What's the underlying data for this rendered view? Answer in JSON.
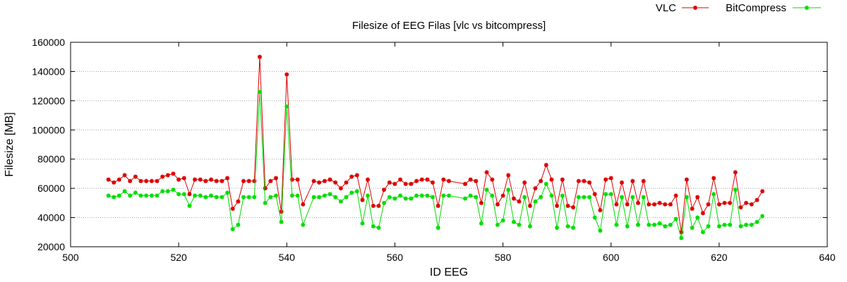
{
  "chart_data": {
    "type": "line",
    "title": "Filesize of EEG Filas [vlc vs bitcompress]",
    "xlabel": "ID EEG",
    "ylabel": "Filesize [MB]",
    "xlim": [
      500,
      640
    ],
    "ylim": [
      20000,
      160000
    ],
    "xticks": [
      500,
      520,
      540,
      560,
      580,
      600,
      620,
      640
    ],
    "yticks": [
      20000,
      40000,
      60000,
      80000,
      100000,
      120000,
      140000,
      160000
    ],
    "grid": "horizontal-dotted",
    "legend_position": "top-right",
    "x": [
      507,
      508,
      509,
      510,
      511,
      512,
      513,
      514,
      515,
      516,
      517,
      518,
      519,
      520,
      521,
      522,
      523,
      524,
      525,
      526,
      527,
      528,
      529,
      530,
      531,
      532,
      533,
      534,
      535,
      536,
      537,
      538,
      539,
      540,
      541,
      542,
      543,
      545,
      546,
      547,
      548,
      549,
      550,
      551,
      552,
      553,
      554,
      555,
      556,
      557,
      558,
      559,
      560,
      561,
      562,
      563,
      564,
      565,
      566,
      567,
      568,
      569,
      570,
      573,
      574,
      575,
      576,
      577,
      578,
      579,
      580,
      581,
      582,
      583,
      584,
      585,
      586,
      587,
      588,
      589,
      590,
      591,
      592,
      593,
      594,
      595,
      596,
      597,
      598,
      599,
      600,
      601,
      602,
      603,
      604,
      605,
      606,
      607,
      608,
      609,
      610,
      611,
      612,
      613,
      614,
      615,
      616,
      617,
      618,
      619,
      620,
      621,
      622,
      623,
      624,
      625,
      626,
      627,
      628
    ],
    "series": [
      {
        "name": "VLC",
        "color": "#dd0000",
        "values": [
          66000,
          64000,
          66000,
          69000,
          65000,
          68000,
          65000,
          65000,
          65000,
          65000,
          68000,
          69000,
          70000,
          66000,
          67000,
          56000,
          66000,
          66000,
          65000,
          66000,
          65000,
          65000,
          67000,
          46000,
          51000,
          65000,
          65000,
          65000,
          150000,
          60000,
          65000,
          67000,
          44000,
          138000,
          66000,
          66000,
          49000,
          65000,
          64000,
          65000,
          66000,
          64000,
          60000,
          64000,
          68000,
          69000,
          52000,
          66000,
          48000,
          48000,
          59000,
          64000,
          63000,
          66000,
          63000,
          63000,
          65000,
          66000,
          66000,
          64000,
          48000,
          66000,
          65000,
          63000,
          66000,
          65000,
          50000,
          71000,
          66000,
          49000,
          55000,
          69000,
          53000,
          51000,
          64000,
          48000,
          60000,
          65000,
          76000,
          66000,
          48000,
          66000,
          48000,
          47000,
          65000,
          65000,
          64000,
          56000,
          45000,
          66000,
          67000,
          49000,
          64000,
          49000,
          65000,
          50000,
          65000,
          49000,
          49000,
          50000,
          49000,
          49000,
          55000,
          30000,
          66000,
          46000,
          54000,
          43000,
          49000,
          67000,
          49000,
          50000,
          50000,
          71000,
          47000,
          50000,
          49000,
          52000,
          58000
        ]
      },
      {
        "name": "BitCompress",
        "color": "#00dd00",
        "values": [
          55000,
          54000,
          55000,
          58000,
          55000,
          57000,
          55000,
          55000,
          55000,
          55000,
          58000,
          58000,
          59000,
          56000,
          56000,
          48000,
          55000,
          55000,
          54000,
          55000,
          54000,
          54000,
          57000,
          32000,
          35000,
          54000,
          54000,
          54000,
          126000,
          50000,
          54000,
          55000,
          37000,
          116000,
          55000,
          55000,
          35000,
          54000,
          54000,
          55000,
          56000,
          54000,
          51000,
          54000,
          57000,
          58000,
          36000,
          55000,
          34000,
          33000,
          50000,
          54000,
          53000,
          55000,
          53000,
          53000,
          55000,
          55000,
          55000,
          54000,
          33000,
          55000,
          55000,
          53000,
          55000,
          54000,
          36000,
          59000,
          55000,
          35000,
          38000,
          59000,
          37000,
          35000,
          54000,
          34000,
          51000,
          54000,
          63000,
          55000,
          33000,
          55000,
          34000,
          33000,
          54000,
          54000,
          54000,
          40000,
          31000,
          56000,
          56000,
          35000,
          54000,
          34000,
          54000,
          35000,
          54000,
          35000,
          35000,
          36000,
          34000,
          35000,
          39000,
          26000,
          54000,
          33000,
          40000,
          30000,
          34000,
          56000,
          34000,
          35000,
          35000,
          59000,
          34000,
          35000,
          35000,
          37000,
          41000
        ]
      }
    ]
  }
}
